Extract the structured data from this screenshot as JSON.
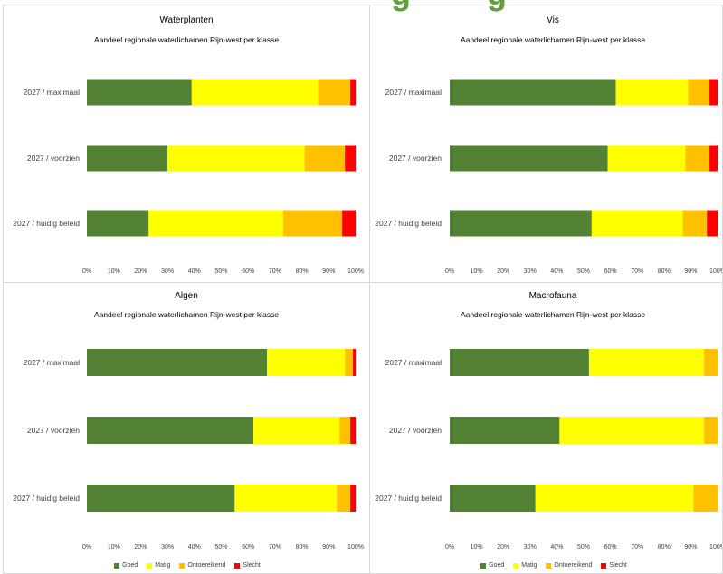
{
  "header": {
    "fragments": [
      "g",
      "g"
    ],
    "color": "#5fa03a"
  },
  "chart_data": [
    {
      "type": "bar",
      "orientation": "horizontal",
      "stacked": "percent",
      "title": "Waterplanten",
      "subtitle": "Aandeel regionale waterlichamen Rijn-west per klasse",
      "categories": [
        "2027 / maximaal",
        "2027 / voorzien",
        "2027 / huidig beleid"
      ],
      "series": [
        {
          "color": "#548235",
          "values": [
            39,
            30,
            23
          ]
        },
        {
          "color": "#ffff00",
          "values": [
            47,
            51,
            50
          ]
        },
        {
          "color": "#ffc000",
          "values": [
            12,
            15,
            22
          ]
        },
        {
          "color": "#ff0000",
          "values": [
            2,
            4,
            5
          ]
        }
      ],
      "xlim": [
        0,
        100
      ],
      "xticks": [
        "0%",
        "10%",
        "20%",
        "30%",
        "40%",
        "50%",
        "60%",
        "70%",
        "80%",
        "90%",
        "100%"
      ],
      "grid": false,
      "legend": "none"
    },
    {
      "type": "bar",
      "orientation": "horizontal",
      "stacked": "percent",
      "title": "Vis",
      "subtitle": "Aandeel regionale waterlichamen Rijn-west per klasse",
      "categories": [
        "2027 / maximaal",
        "2027 / voorzien",
        "2027 / huidig beleid"
      ],
      "series": [
        {
          "color": "#548235",
          "values": [
            62,
            59,
            53
          ]
        },
        {
          "color": "#ffff00",
          "values": [
            27,
            29,
            34
          ]
        },
        {
          "color": "#ffc000",
          "values": [
            8,
            9,
            9
          ]
        },
        {
          "color": "#ff0000",
          "values": [
            3,
            3,
            4
          ]
        }
      ],
      "xlim": [
        0,
        100
      ],
      "xticks": [
        "0%",
        "10%",
        "20%",
        "30%",
        "40%",
        "50%",
        "60%",
        "70%",
        "80%",
        "90%",
        "100%"
      ],
      "grid": false,
      "legend": "none"
    },
    {
      "type": "bar",
      "orientation": "horizontal",
      "stacked": "percent",
      "title": "Algen",
      "subtitle": "Aandeel regionale waterlichamen Rijn-west per klasse",
      "categories": [
        "2027 / maximaal",
        "2027 / voorzien",
        "2027 / huidig beleid"
      ],
      "series": [
        {
          "name": "Goed",
          "color": "#548235",
          "values": [
            67,
            62,
            55
          ]
        },
        {
          "name": "Matig",
          "color": "#ffff00",
          "values": [
            29,
            32,
            38
          ]
        },
        {
          "name": "Ontoereikend",
          "color": "#ffc000",
          "values": [
            3,
            4,
            5
          ]
        },
        {
          "name": "Slecht",
          "color": "#ff0000",
          "values": [
            1,
            2,
            2
          ]
        }
      ],
      "xlim": [
        0,
        100
      ],
      "xticks": [
        "0%",
        "10%",
        "20%",
        "30%",
        "40%",
        "50%",
        "60%",
        "70%",
        "80%",
        "90%",
        "100%"
      ],
      "grid": false,
      "legend": "bottom"
    },
    {
      "type": "bar",
      "orientation": "horizontal",
      "stacked": "percent",
      "title": "Macrofauna",
      "subtitle": "Aandeel regionale waterlichamen Rijn-west per klasse",
      "categories": [
        "2027 / maximaal",
        "2027 / voorzien",
        "2027 / huidig beleid"
      ],
      "series": [
        {
          "name": "Goed",
          "color": "#548235",
          "values": [
            52,
            41,
            32
          ]
        },
        {
          "name": "Matig",
          "color": "#ffff00",
          "values": [
            43,
            54,
            59
          ]
        },
        {
          "name": "Ontoereikend",
          "color": "#ffc000",
          "values": [
            5,
            5,
            9
          ]
        },
        {
          "name": "Slecht",
          "color": "#ff0000",
          "values": [
            0,
            0,
            0
          ]
        }
      ],
      "xlim": [
        0,
        100
      ],
      "xticks": [
        "0%",
        "10%",
        "20%",
        "30%",
        "40%",
        "50%",
        "60%",
        "70%",
        "80%",
        "90%",
        "100%"
      ],
      "grid": false,
      "legend": "bottom"
    }
  ]
}
